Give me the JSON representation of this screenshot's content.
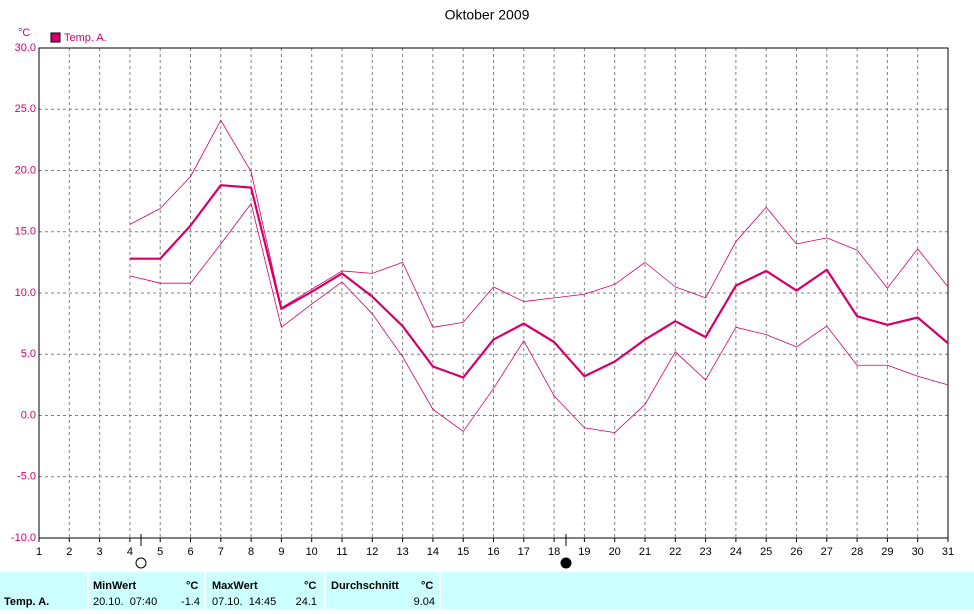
{
  "chart_data": {
    "type": "line",
    "title": "Oktober 2009",
    "y_unit": "°C",
    "legend": "Temp. A.",
    "legend_color": "#d4006a",
    "x": [
      1,
      2,
      3,
      4,
      5,
      6,
      7,
      8,
      9,
      10,
      11,
      12,
      13,
      14,
      15,
      16,
      17,
      18,
      19,
      20,
      21,
      22,
      23,
      24,
      25,
      26,
      27,
      28,
      29,
      30,
      31
    ],
    "xlim": [
      1,
      31
    ],
    "xticks": [
      1,
      2,
      3,
      4,
      5,
      6,
      7,
      8,
      9,
      10,
      11,
      12,
      13,
      14,
      15,
      16,
      17,
      18,
      19,
      20,
      21,
      22,
      23,
      24,
      25,
      26,
      27,
      28,
      29,
      30,
      31
    ],
    "ylim": [
      -10,
      30
    ],
    "yticks": [
      {
        "value": -10,
        "label": "-10.0"
      },
      {
        "value": -5,
        "label": "-5.0"
      },
      {
        "value": 0,
        "label": "0.0"
      },
      {
        "value": 5,
        "label": "5.0"
      },
      {
        "value": 10,
        "label": "10.0"
      },
      {
        "value": 15,
        "label": "15.0"
      },
      {
        "value": 20,
        "label": "20.0"
      },
      {
        "value": 25,
        "label": "25.0"
      },
      {
        "value": 30,
        "label": "30.0"
      }
    ],
    "grid": true,
    "series": [
      {
        "color": "#d4006a",
        "width": 2.2,
        "values": [
          null,
          null,
          null,
          12.8,
          12.8,
          15.5,
          18.8,
          18.6,
          8.7,
          10.1,
          11.6,
          9.7,
          7.3,
          4.0,
          3.1,
          6.2,
          7.5,
          6.0,
          3.2,
          4.4,
          6.2,
          7.7,
          6.4,
          10.6,
          11.8,
          10.2,
          11.9,
          8.1,
          7.4,
          8.0,
          5.9
        ]
      },
      {
        "color": "#d4006a",
        "width": 0.8,
        "values": [
          null,
          null,
          null,
          15.6,
          16.9,
          19.5,
          24.1,
          19.9,
          8.8,
          10.3,
          11.8,
          11.6,
          12.5,
          7.2,
          7.6,
          10.5,
          9.3,
          9.6,
          9.9,
          10.7,
          12.5,
          10.5,
          9.6,
          14.2,
          17.0,
          14.0,
          14.5,
          13.5,
          10.4,
          13.6,
          10.5
        ]
      },
      {
        "color": "#d4006a",
        "width": 0.8,
        "values": [
          null,
          null,
          null,
          11.4,
          10.8,
          10.8,
          14.0,
          17.3,
          7.2,
          9.1,
          10.9,
          8.3,
          4.8,
          0.5,
          -1.3,
          2.2,
          6.1,
          1.6,
          -1.0,
          -1.4,
          0.9,
          5.2,
          2.9,
          7.2,
          6.6,
          5.6,
          7.3,
          4.1,
          4.1,
          3.2,
          2.5
        ]
      }
    ]
  },
  "stats": {
    "name": "Temp. A.",
    "min": {
      "label": "MinWert",
      "unit": "°C",
      "time": "20.10.  07:40",
      "value": -1.4
    },
    "max": {
      "label": "MaxWert",
      "unit": "°C",
      "time": "07.10.  14:45",
      "value": 24.1
    },
    "avg": {
      "label": "Durchschnitt",
      "unit": "°C",
      "value": 9.04
    }
  }
}
